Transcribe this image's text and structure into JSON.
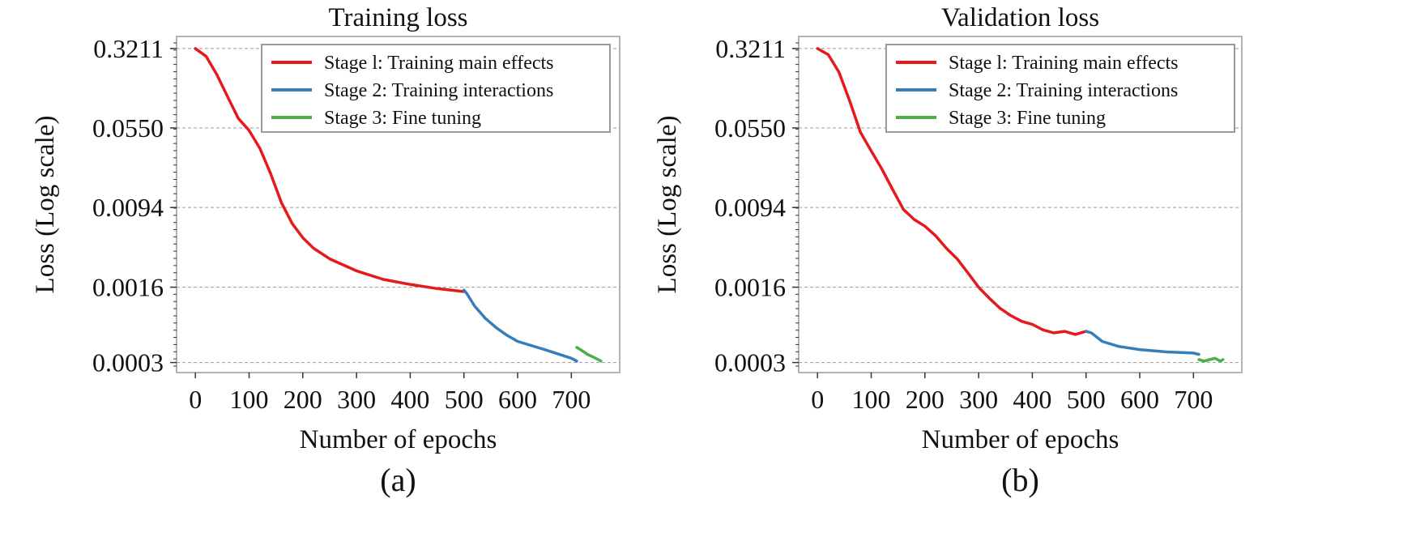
{
  "colors": {
    "stage1": "#e41a1c",
    "stage2": "#377eb8",
    "stage3": "#4daf4a",
    "grid": "#9a9a9a",
    "frame": "#9a9a9a"
  },
  "chart_data": [
    {
      "type": "line",
      "panel_label": "(a)",
      "title": "Training loss",
      "xlabel": "Number of epochs",
      "ylabel": "Loss (Log scale)",
      "xlim": [
        -35,
        790
      ],
      "ylim": [
        0.00024,
        0.42
      ],
      "yscale": "log",
      "grid": "horizontal dashed",
      "legend_position": "top-right",
      "xticks": [
        0,
        100,
        200,
        300,
        400,
        500,
        600,
        700
      ],
      "yticks": [
        0.3211,
        0.055,
        0.0094,
        0.0016,
        0.0003
      ],
      "ytick_labels": [
        "0.3211",
        "0.0550",
        "0.0094",
        "0.0016",
        "0.0003"
      ],
      "series": [
        {
          "name": "Stage l: Training main effects",
          "color_key": "stage1",
          "x": [
            0,
            20,
            40,
            60,
            80,
            100,
            120,
            140,
            160,
            180,
            200,
            220,
            250,
            300,
            350,
            400,
            450,
            500
          ],
          "y": [
            0.3211,
            0.27,
            0.18,
            0.11,
            0.068,
            0.052,
            0.035,
            0.02,
            0.0105,
            0.0066,
            0.0048,
            0.0038,
            0.003,
            0.0023,
            0.0019,
            0.0017,
            0.00155,
            0.00145
          ]
        },
        {
          "name": "Stage 2: Training interactions",
          "color_key": "stage2",
          "x": [
            500,
            505,
            520,
            540,
            560,
            580,
            600,
            650,
            700,
            710
          ],
          "y": [
            0.0015,
            0.0014,
            0.00105,
            0.0008,
            0.00065,
            0.00055,
            0.00048,
            0.0004,
            0.00033,
            0.00031
          ]
        },
        {
          "name": "Stage 3: Fine tuning",
          "color_key": "stage3",
          "x": [
            710,
            720,
            730,
            740,
            750,
            755
          ],
          "y": [
            0.00042,
            0.00039,
            0.00036,
            0.00034,
            0.00032,
            0.00031
          ]
        }
      ]
    },
    {
      "type": "line",
      "panel_label": "(b)",
      "title": "Validation loss",
      "xlabel": "Number of epochs",
      "ylabel": "Loss (Log scale)",
      "xlim": [
        -35,
        790
      ],
      "ylim": [
        0.00024,
        0.42
      ],
      "yscale": "log",
      "grid": "horizontal dashed",
      "legend_position": "top-right",
      "xticks": [
        0,
        100,
        200,
        300,
        400,
        500,
        600,
        700
      ],
      "yticks": [
        0.3211,
        0.055,
        0.0094,
        0.0016,
        0.0003
      ],
      "ytick_labels": [
        "0.3211",
        "0.0550",
        "0.0094",
        "0.0016",
        "0.0003"
      ],
      "series": [
        {
          "name": "Stage l: Training main effects",
          "color_key": "stage1",
          "x": [
            0,
            20,
            40,
            60,
            80,
            100,
            120,
            140,
            160,
            180,
            200,
            220,
            240,
            260,
            280,
            300,
            320,
            340,
            360,
            380,
            400,
            420,
            440,
            460,
            480,
            500
          ],
          "y": [
            0.3211,
            0.28,
            0.19,
            0.1,
            0.05,
            0.033,
            0.022,
            0.014,
            0.009,
            0.0072,
            0.0062,
            0.005,
            0.0038,
            0.003,
            0.0022,
            0.0016,
            0.00125,
            0.001,
            0.00085,
            0.00075,
            0.0007,
            0.00062,
            0.00058,
            0.0006,
            0.00056,
            0.0006
          ]
        },
        {
          "name": "Stage 2: Training interactions",
          "color_key": "stage2",
          "x": [
            500,
            510,
            530,
            560,
            600,
            650,
            700,
            710
          ],
          "y": [
            0.0006,
            0.00058,
            0.00048,
            0.00043,
            0.0004,
            0.00038,
            0.00037,
            0.00036
          ]
        },
        {
          "name": "Stage 3: Fine tuning",
          "color_key": "stage3",
          "x": [
            710,
            720,
            730,
            740,
            750,
            755
          ],
          "y": [
            0.00032,
            0.00031,
            0.00032,
            0.00033,
            0.00031,
            0.00032
          ]
        }
      ]
    }
  ]
}
